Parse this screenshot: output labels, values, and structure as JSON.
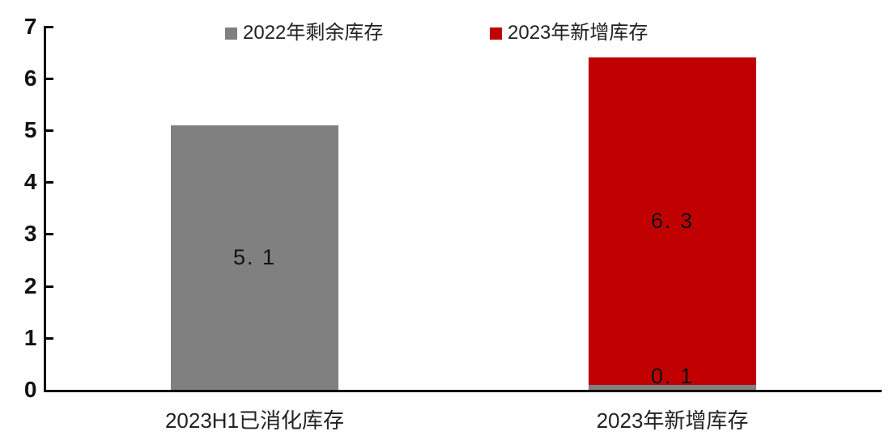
{
  "figure": {
    "background": "#ffffff",
    "axis_color": "#000000",
    "text_color": "#1a1a1a"
  },
  "legend": {
    "items": [
      {
        "label": "2022年剩余库存",
        "color": "#808080"
      },
      {
        "label": "2023年新增库存",
        "color": "#c00000"
      }
    ]
  },
  "chart_data": {
    "type": "bar",
    "subtype": "stacked",
    "title": "",
    "xlabel": "",
    "ylabel": "",
    "categories": [
      "2023H1已消化库存",
      "2023年新增库存"
    ],
    "series": [
      {
        "name": "2022年剩余库存",
        "color": "#808080",
        "values": [
          5.1,
          0.1
        ]
      },
      {
        "name": "2023年新增库存",
        "color": "#c00000",
        "values": [
          0,
          6.3
        ]
      }
    ],
    "data_labels": [
      [
        {
          "series": 0,
          "text": "5. 1"
        }
      ],
      [
        {
          "series": 0,
          "text": "0. 1"
        },
        {
          "series": 1,
          "text": "6. 3"
        }
      ]
    ],
    "y_ticks": [
      "0",
      "1",
      "2",
      "3",
      "4",
      "5",
      "6",
      "7"
    ],
    "ylim": [
      0,
      7
    ],
    "grid": false,
    "legend_position": "top"
  }
}
